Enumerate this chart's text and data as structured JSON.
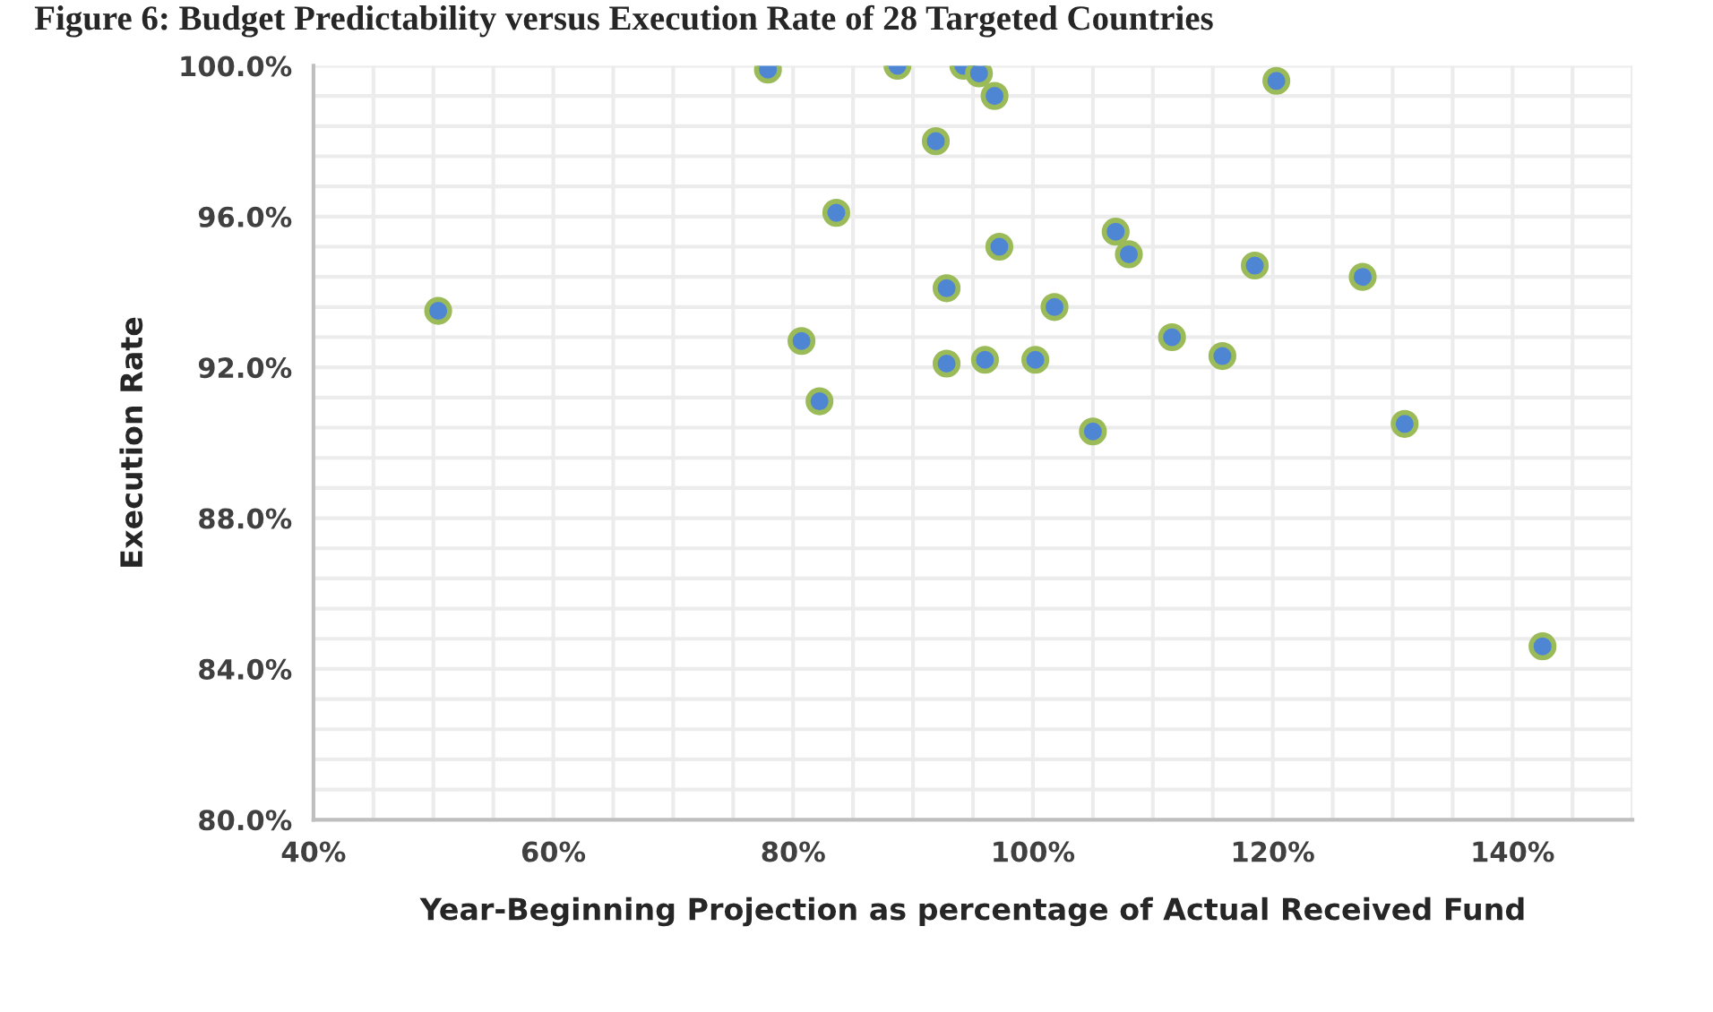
{
  "chart_data": {
    "type": "scatter",
    "title": "Figure 6: Budget Predictability versus Execution Rate of 28 Targeted Countries",
    "xlabel": "Year-Beginning Projection as percentage of Actual Received Fund",
    "ylabel": "Execution Rate",
    "x": [
      50.4,
      77.9,
      88.7,
      94.2,
      95.5,
      96.8,
      91.9,
      83.6,
      97.2,
      92.8,
      80.7,
      92.8,
      96.0,
      82.2,
      120.3,
      106.9,
      108.0,
      118.5,
      127.5,
      101.8,
      100.2,
      111.6,
      115.8,
      105.0,
      131.0,
      142.5
    ],
    "series": [
      {
        "color": "#4f86d4",
        "values": [
          93.5,
          99.9,
          100.0,
          100.0,
          99.8,
          99.2,
          98.0,
          96.1,
          95.2,
          94.1,
          92.7,
          92.1,
          92.2,
          91.1,
          99.6,
          95.6,
          95.0,
          94.7,
          94.4,
          93.6,
          92.2,
          92.8,
          92.3,
          90.3,
          90.5,
          84.6
        ]
      }
    ],
    "xlim": [
      40,
      150
    ],
    "xticks": [
      {
        "value": 40,
        "label": "40%"
      },
      {
        "value": 45,
        "label": null
      },
      {
        "value": 50,
        "label": null
      },
      {
        "value": 55,
        "label": null
      },
      {
        "value": 60,
        "label": "60%"
      },
      {
        "value": 65,
        "label": null
      },
      {
        "value": 70,
        "label": null
      },
      {
        "value": 75,
        "label": null
      },
      {
        "value": 80,
        "label": "80%"
      },
      {
        "value": 85,
        "label": null
      },
      {
        "value": 90,
        "label": null
      },
      {
        "value": 95,
        "label": null
      },
      {
        "value": 100,
        "label": "100%"
      },
      {
        "value": 105,
        "label": null
      },
      {
        "value": 110,
        "label": null
      },
      {
        "value": 115,
        "label": null
      },
      {
        "value": 120,
        "label": "120%"
      },
      {
        "value": 125,
        "label": null
      },
      {
        "value": 130,
        "label": null
      },
      {
        "value": 135,
        "label": null
      },
      {
        "value": 140,
        "label": "140%"
      },
      {
        "value": 145,
        "label": null
      },
      {
        "value": 150,
        "label": null
      }
    ],
    "ylim": [
      80,
      100
    ],
    "yticks": [
      {
        "value": 80,
        "label": "80.0%"
      },
      {
        "value": 80.8,
        "label": null
      },
      {
        "value": 81.6,
        "label": null
      },
      {
        "value": 82.4,
        "label": null
      },
      {
        "value": 83.2,
        "label": null
      },
      {
        "value": 84,
        "label": "84.0%"
      },
      {
        "value": 84.8,
        "label": null
      },
      {
        "value": 85.6,
        "label": null
      },
      {
        "value": 86.4,
        "label": null
      },
      {
        "value": 87.2,
        "label": null
      },
      {
        "value": 88,
        "label": "88.0%"
      },
      {
        "value": 88.8,
        "label": null
      },
      {
        "value": 89.6,
        "label": null
      },
      {
        "value": 90.4,
        "label": null
      },
      {
        "value": 91.2,
        "label": null
      },
      {
        "value": 92,
        "label": "92.0%"
      },
      {
        "value": 92.8,
        "label": null
      },
      {
        "value": 93.6,
        "label": null
      },
      {
        "value": 94.4,
        "label": null
      },
      {
        "value": 95.2,
        "label": null
      },
      {
        "value": 96,
        "label": "96.0%"
      },
      {
        "value": 96.8,
        "label": null
      },
      {
        "value": 97.6,
        "label": null
      },
      {
        "value": 98.4,
        "label": null
      },
      {
        "value": 99.2,
        "label": null
      },
      {
        "value": 100,
        "label": "100.0%"
      }
    ],
    "grid": true,
    "marker": "circle",
    "legend": false
  }
}
